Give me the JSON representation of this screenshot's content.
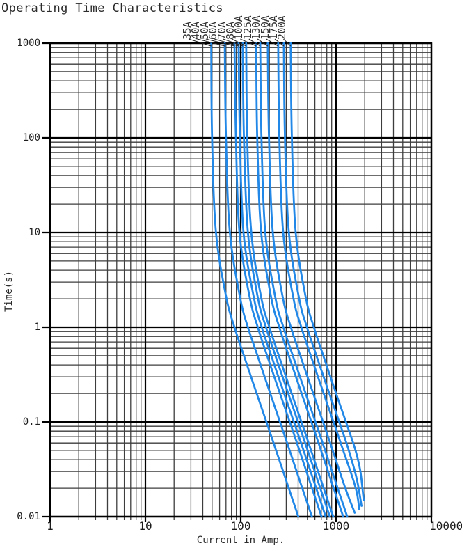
{
  "chart_data": {
    "type": "line",
    "title": "Operating Time Characteristics",
    "xlabel": "Current in Amp.",
    "ylabel": "Time(s)",
    "x_scale": "log",
    "y_scale": "log",
    "xlim": [
      1,
      10000
    ],
    "ylim": [
      0.01,
      1000
    ],
    "grid": "major and minor log gridlines on both axes",
    "legend_position": "rotated labels with leader lines above plot top edge",
    "x_ticks": {
      "values": [
        1,
        10,
        100,
        1000,
        10000
      ],
      "labels": [
        "1",
        "10",
        "100",
        "1000",
        "10000"
      ]
    },
    "y_ticks": {
      "values": [
        1000,
        100,
        10,
        1,
        0.1,
        0.01
      ],
      "labels": [
        "1000",
        "100",
        "10",
        "1",
        "0.1",
        "0.01"
      ]
    },
    "colors": {
      "curve": "#2288e8",
      "grid_major": "#000000",
      "grid_minor": "#3d3d3d",
      "text": "#2b2b2b",
      "background": "#ffffff"
    },
    "series": [
      {
        "name": "35A",
        "points": [
          [
            49,
            1000
          ],
          [
            50,
            100
          ],
          [
            55,
            10
          ],
          [
            71,
            2
          ],
          [
            86,
            1
          ],
          [
            108,
            0.5
          ],
          [
            147,
            0.2
          ],
          [
            186,
            0.1
          ],
          [
            235,
            0.05
          ],
          [
            319,
            0.02
          ],
          [
            402,
            0.01
          ]
        ]
      },
      {
        "name": "40A",
        "points": [
          [
            68,
            1000
          ],
          [
            70,
            100
          ],
          [
            77,
            10
          ],
          [
            99,
            2
          ],
          [
            119,
            1
          ],
          [
            150,
            0.5
          ],
          [
            204,
            0.2
          ],
          [
            258,
            0.1
          ],
          [
            326,
            0.05
          ],
          [
            442,
            0.02
          ],
          [
            558,
            0.01
          ]
        ]
      },
      {
        "name": "50A",
        "points": [
          [
            86,
            1000
          ],
          [
            89,
            100
          ],
          [
            97,
            10
          ],
          [
            125,
            2
          ],
          [
            151,
            1
          ],
          [
            189,
            0.5
          ],
          [
            258,
            0.2
          ],
          [
            327,
            0.1
          ],
          [
            413,
            0.05
          ],
          [
            559,
            0.02
          ],
          [
            705,
            0.01
          ]
        ]
      },
      {
        "name": "60A",
        "points": [
          [
            95,
            1000
          ],
          [
            98,
            100
          ],
          [
            107,
            10
          ],
          [
            138,
            2
          ],
          [
            166,
            1
          ],
          [
            209,
            0.5
          ],
          [
            285,
            0.2
          ],
          [
            361,
            0.1
          ],
          [
            456,
            0.05
          ],
          [
            618,
            0.02
          ],
          [
            779,
            0.01
          ]
        ]
      },
      {
        "name": "70A",
        "points": [
          [
            105,
            1000
          ],
          [
            108,
            100
          ],
          [
            119,
            10
          ],
          [
            152,
            2
          ],
          [
            184,
            1
          ],
          [
            231,
            0.5
          ],
          [
            315,
            0.2
          ],
          [
            399,
            0.1
          ],
          [
            504,
            0.05
          ],
          [
            683,
            0.02
          ],
          [
            861,
            0.01
          ]
        ]
      },
      {
        "name": "80A",
        "points": [
          [
            114,
            1000
          ],
          [
            117,
            100
          ],
          [
            129,
            10
          ],
          [
            165,
            2
          ],
          [
            200,
            1
          ],
          [
            251,
            0.5
          ],
          [
            342,
            0.2
          ],
          [
            433,
            0.1
          ],
          [
            547,
            0.05
          ],
          [
            741,
            0.02
          ],
          [
            935,
            0.01
          ]
        ]
      },
      {
        "name": "100A",
        "points": [
          [
            145,
            1000
          ],
          [
            149,
            100
          ],
          [
            164,
            10
          ],
          [
            210,
            2
          ],
          [
            254,
            1
          ],
          [
            319,
            0.5
          ],
          [
            435,
            0.2
          ],
          [
            551,
            0.1
          ],
          [
            696,
            0.05
          ],
          [
            943,
            0.02
          ],
          [
            1190,
            0.01
          ]
        ]
      },
      {
        "name": "125A",
        "points": [
          [
            160,
            1000
          ],
          [
            165,
            100
          ],
          [
            181,
            10
          ],
          [
            232,
            2
          ],
          [
            280,
            1
          ],
          [
            352,
            0.5
          ],
          [
            480,
            0.2
          ],
          [
            608,
            0.1
          ],
          [
            768,
            0.05
          ],
          [
            1040,
            0.02
          ],
          [
            1310,
            0.01
          ]
        ]
      },
      {
        "name": "130A",
        "points": [
          [
            192,
            1000
          ],
          [
            198,
            100
          ],
          [
            217,
            10
          ],
          [
            278,
            2
          ],
          [
            336,
            1
          ],
          [
            422,
            0.5
          ],
          [
            576,
            0.2
          ],
          [
            730,
            0.1
          ],
          [
            922,
            0.05
          ],
          [
            1250,
            0.02
          ],
          [
            1570,
            0.011
          ]
        ]
      },
      {
        "name": "150A",
        "points": [
          [
            247,
            1000
          ],
          [
            254,
            100
          ],
          [
            279,
            10
          ],
          [
            358,
            2
          ],
          [
            432,
            1
          ],
          [
            543,
            0.5
          ],
          [
            741,
            0.2
          ],
          [
            939,
            0.1
          ],
          [
            1190,
            0.05
          ],
          [
            1610,
            0.02
          ],
          [
            1750,
            0.012
          ]
        ]
      },
      {
        "name": "175A",
        "points": [
          [
            283,
            1000
          ],
          [
            291,
            100
          ],
          [
            320,
            10
          ],
          [
            410,
            2
          ],
          [
            495,
            1
          ],
          [
            623,
            0.5
          ],
          [
            849,
            0.2
          ],
          [
            1080,
            0.1
          ],
          [
            1360,
            0.05
          ],
          [
            1650,
            0.025
          ],
          [
            1850,
            0.013
          ]
        ]
      },
      {
        "name": "200A",
        "points": [
          [
            334,
            1000
          ],
          [
            344,
            100
          ],
          [
            377,
            10
          ],
          [
            484,
            2
          ],
          [
            585,
            1
          ],
          [
            735,
            0.5
          ],
          [
            1000,
            0.2
          ],
          [
            1270,
            0.1
          ],
          [
            1600,
            0.05
          ],
          [
            1800,
            0.03
          ],
          [
            1950,
            0.015
          ]
        ]
      }
    ]
  }
}
